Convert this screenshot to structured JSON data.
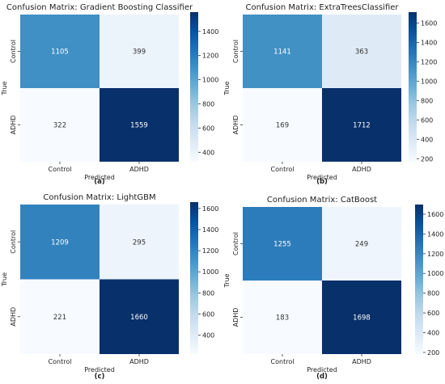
{
  "chart_data": [
    {
      "type": "heatmap",
      "panel_label": "(a)",
      "title": "Confusion Matrix: Gradient Boosting Classifier",
      "xlabel": "Predicted",
      "ylabel": "True",
      "x_categories": [
        "Control",
        "ADHD"
      ],
      "y_categories": [
        "Control",
        "ADHD"
      ],
      "values": [
        [
          1105,
          399
        ],
        [
          322,
          1559
        ]
      ],
      "colorbar": {
        "range": [
          322,
          1559
        ],
        "ticks": [
          400,
          600,
          800,
          1000,
          1200,
          1400
        ]
      }
    },
    {
      "type": "heatmap",
      "panel_label": "(b)",
      "title": "Confusion Matrix: ExtraTreesClassifier",
      "xlabel": "Predicted",
      "ylabel": "True",
      "x_categories": [
        "Control",
        "ADHD"
      ],
      "y_categories": [
        "Control",
        "ADHD"
      ],
      "values": [
        [
          1141,
          363
        ],
        [
          169,
          1712
        ]
      ],
      "colorbar": {
        "range": [
          169,
          1712
        ],
        "ticks": [
          200,
          400,
          600,
          800,
          1000,
          1200,
          1400,
          1600
        ]
      }
    },
    {
      "type": "heatmap",
      "panel_label": "(c)",
      "title": "Confusion Matrix: LightGBM",
      "xlabel": "Predicted",
      "ylabel": "True",
      "x_categories": [
        "Control",
        "ADHD"
      ],
      "y_categories": [
        "Control",
        "ADHD"
      ],
      "values": [
        [
          1209,
          295
        ],
        [
          221,
          1660
        ]
      ],
      "colorbar": {
        "range": [
          221,
          1660
        ],
        "ticks": [
          400,
          600,
          800,
          1000,
          1200,
          1400,
          1600
        ]
      }
    },
    {
      "type": "heatmap",
      "panel_label": "(d)",
      "title": "Confusion Matrix: CatBoost",
      "xlabel": "Predicted",
      "ylabel": "True",
      "x_categories": [
        "Control",
        "ADHD"
      ],
      "y_categories": [
        "Control",
        "ADHD"
      ],
      "values": [
        [
          1255,
          249
        ],
        [
          183,
          1698
        ]
      ],
      "colorbar": {
        "range": [
          183,
          1698
        ],
        "ticks": [
          200,
          400,
          600,
          800,
          1000,
          1200,
          1400,
          1600
        ]
      }
    }
  ]
}
